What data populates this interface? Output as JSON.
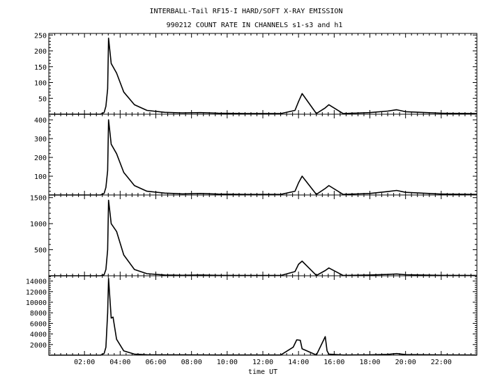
{
  "chart_data": {
    "type": "line",
    "title": "INTERBALL-Tail RF15-I HARD/SOFT X-RAY EMISSION",
    "subtitle": "990212  COUNT RATE IN CHANNELS s1-s3 and h1",
    "xlabel": "time UT",
    "x_ticks": [
      "02:00",
      "04:00",
      "06:00",
      "08:00",
      "10:00",
      "12:00",
      "14:00",
      "16:00",
      "18:00",
      "20:00",
      "22:00"
    ],
    "xlim_hours": [
      0,
      24
    ],
    "grid": false,
    "line_color": "#000000",
    "panels": [
      {
        "ylim": [
          0,
          255
        ],
        "y_ticks": [
          50,
          100,
          150,
          200,
          250
        ],
        "series": [
          {
            "x": [
              0,
              2.9,
              3.1,
              3.2,
              3.3,
              3.35,
              3.5,
              3.8,
              4.2,
              4.8,
              5.5,
              6.5,
              7.5,
              8.5,
              9.5,
              11,
              13,
              13.8,
              14.0,
              14.2,
              15,
              15.5,
              15.7,
              16.5,
              18,
              19,
              19.5,
              20,
              22,
              24
            ],
            "y": [
              0,
              0,
              5,
              25,
              80,
              240,
              160,
              130,
              70,
              30,
              12,
              6,
              4,
              5,
              3,
              2,
              2,
              12,
              40,
              65,
              2,
              20,
              30,
              2,
              5,
              10,
              14,
              8,
              3,
              2
            ]
          }
        ]
      },
      {
        "ylim": [
          0,
          430
        ],
        "y_ticks": [
          100,
          200,
          300,
          400
        ],
        "series": [
          {
            "x": [
              0,
              2.9,
              3.1,
              3.2,
              3.3,
              3.35,
              3.5,
              3.8,
              4.2,
              4.8,
              5.5,
              6.5,
              7.5,
              8.5,
              9.5,
              11,
              13,
              13.8,
              14.0,
              14.2,
              15,
              15.5,
              15.7,
              16.5,
              18,
              19,
              19.5,
              20,
              22,
              24
            ],
            "y": [
              0,
              0,
              8,
              40,
              130,
              400,
              270,
              220,
              120,
              50,
              20,
              10,
              6,
              8,
              5,
              3,
              3,
              20,
              65,
              100,
              3,
              35,
              50,
              3,
              8,
              18,
              24,
              14,
              5,
              3
            ]
          }
        ]
      },
      {
        "ylim": [
          0,
          1550
        ],
        "y_ticks": [
          500,
          1000,
          1500
        ],
        "series": [
          {
            "x": [
              0,
              2.9,
              3.1,
              3.2,
              3.3,
              3.35,
              3.5,
              3.8,
              4.2,
              4.8,
              5.5,
              6.5,
              7.5,
              8.5,
              9.5,
              11,
              13,
              13.8,
              14.0,
              14.2,
              15,
              15.5,
              15.7,
              16.5,
              18,
              19,
              19.5,
              20,
              22,
              24
            ],
            "y": [
              0,
              0,
              20,
              120,
              500,
              1450,
              1000,
              850,
              400,
              120,
              40,
              15,
              10,
              15,
              8,
              5,
              5,
              80,
              220,
              280,
              5,
              100,
              150,
              5,
              15,
              25,
              35,
              20,
              8,
              5
            ]
          }
        ]
      },
      {
        "ylim": [
          0,
          15000
        ],
        "y_ticks": [
          2000,
          4000,
          6000,
          8000,
          10000,
          12000,
          14000
        ],
        "series": [
          {
            "x": [
              0,
              2.9,
              3.1,
              3.2,
              3.3,
              3.35,
              3.5,
              3.6,
              3.8,
              4.2,
              4.8,
              5.5,
              6.5,
              7.5,
              8.5,
              9.5,
              11,
              13,
              13.7,
              13.9,
              14.1,
              14.2,
              15,
              15.5,
              15.6,
              15.7,
              16.5,
              18,
              19,
              19.5,
              20,
              22,
              24
            ],
            "y": [
              0,
              0,
              300,
              1500,
              8000,
              14500,
              7000,
              7200,
              3000,
              800,
              200,
              80,
              50,
              60,
              40,
              30,
              20,
              20,
              1500,
              2900,
              2800,
              1200,
              30,
              3500,
              800,
              200,
              30,
              60,
              150,
              300,
              100,
              40,
              20
            ]
          }
        ]
      }
    ]
  }
}
